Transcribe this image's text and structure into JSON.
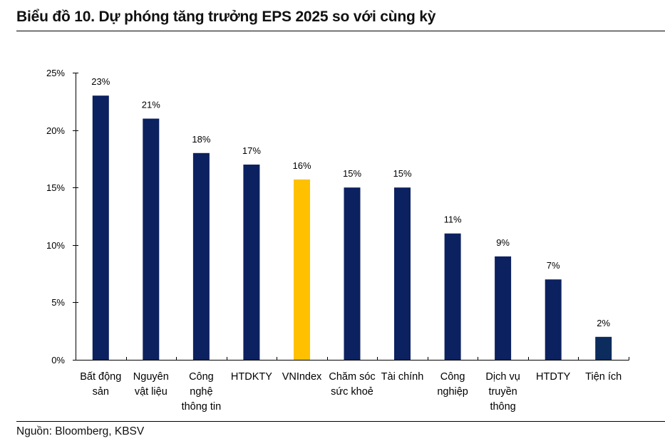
{
  "header": {
    "title": "Biểu đồ 10. Dự phóng tăng trưởng EPS 2025 so với cùng kỳ"
  },
  "footer": {
    "source": "Nguồn: Bloomberg, KBSV"
  },
  "colors": {
    "bar_default": "#0c2160",
    "bar_highlight": "#ffc000",
    "bar_last": "#0b2c5c",
    "axis": "#000000"
  },
  "chart_data": {
    "type": "bar",
    "title": "Biểu đồ 10. Dự phóng tăng trưởng EPS 2025 so với cùng kỳ",
    "xlabel": "",
    "ylabel": "",
    "ylim": [
      0,
      25
    ],
    "yticks": [
      0,
      5,
      10,
      15,
      20,
      25
    ],
    "ytick_labels": [
      "0%",
      "5%",
      "10%",
      "15%",
      "20%",
      "25%"
    ],
    "grid": false,
    "legend": "none",
    "categories": [
      [
        "Bất động",
        "sản"
      ],
      [
        "Nguyên",
        "vật liệu"
      ],
      [
        "Công",
        "nghệ",
        "thông tin"
      ],
      [
        "HTDKTY"
      ],
      [
        "VNIndex"
      ],
      [
        "Chăm sóc",
        "sức khoẻ"
      ],
      [
        "Tài chính"
      ],
      [
        "Công",
        "nghiệp"
      ],
      [
        "Dịch vụ",
        "truyền",
        "thông"
      ],
      [
        "HTDTY"
      ],
      [
        "Tiện ích"
      ]
    ],
    "values": [
      23,
      21,
      18,
      17,
      15.7,
      15,
      15,
      11,
      9,
      7,
      2
    ],
    "data_labels": [
      "23%",
      "21%",
      "18%",
      "17%",
      "16%",
      "15%",
      "15%",
      "11%",
      "9%",
      "7%",
      "2%"
    ],
    "highlight": [
      "default",
      "default",
      "default",
      "default",
      "highlight",
      "default",
      "default",
      "default",
      "default",
      "default",
      "last"
    ]
  }
}
